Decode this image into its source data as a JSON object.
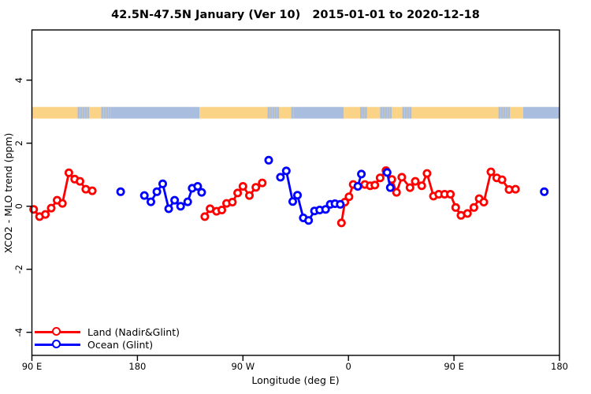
{
  "chart_data": {
    "type": "line",
    "title": "42.5N-47.5N January (Ver 10)   2015-01-01 to 2020-12-18",
    "xlabel": "Longitude (deg E)",
    "ylabel": "XCO2 - MLO trend (ppm)",
    "x_axis": {
      "range_deg": [
        90,
        540
      ],
      "ticks": [
        {
          "deg": 90,
          "label": "90 E"
        },
        {
          "deg": 180,
          "label": "180"
        },
        {
          "deg": 270,
          "label": "90 W"
        },
        {
          "deg": 360,
          "label": "0"
        },
        {
          "deg": 450,
          "label": "90 E"
        },
        {
          "deg": 540,
          "label": "180"
        }
      ]
    },
    "y_axis": {
      "range": [
        -4.73,
        5.59
      ],
      "ticks": [
        {
          "value": -4,
          "label": "-4"
        },
        {
          "value": -2,
          "label": "-2"
        },
        {
          "value": 0,
          "label": "0"
        },
        {
          "value": 2,
          "label": "2"
        },
        {
          "value": 4,
          "label": "4"
        }
      ]
    },
    "coastline_band": {
      "y_value_top": 3.15,
      "y_value_bottom": 2.78,
      "land_color": "#fbd387",
      "ocean_color": "#a9bede",
      "segments": [
        {
          "from": 90,
          "to": 129,
          "type": "land"
        },
        {
          "from": 129,
          "to": 157,
          "type": "mixed"
        },
        {
          "from": 157,
          "to": 233,
          "type": "ocean"
        },
        {
          "from": 233,
          "to": 291,
          "type": "land"
        },
        {
          "from": 291,
          "to": 313,
          "type": "mixed"
        },
        {
          "from": 313,
          "to": 356,
          "type": "ocean"
        },
        {
          "from": 356,
          "to": 370,
          "type": "land"
        },
        {
          "from": 370,
          "to": 377,
          "type": "mixed"
        },
        {
          "from": 377,
          "to": 387,
          "type": "land"
        },
        {
          "from": 387,
          "to": 401,
          "type": "mixed"
        },
        {
          "from": 401,
          "to": 406,
          "type": "land"
        },
        {
          "from": 406,
          "to": 414,
          "type": "mixed"
        },
        {
          "from": 414,
          "to": 488,
          "type": "land"
        },
        {
          "from": 488,
          "to": 509,
          "type": "mixed"
        },
        {
          "from": 509,
          "to": 540,
          "type": "ocean"
        }
      ]
    },
    "legend": {
      "position": "bottom-left",
      "items": [
        {
          "label": "Land (Nadir&Glint)",
          "color": "#ff0000"
        },
        {
          "label": "Ocean (Glint)",
          "color": "#0000ff"
        }
      ]
    },
    "series": [
      {
        "name": "Land (Nadir&Glint)",
        "color": "#ff0000",
        "marker": "open-circle",
        "segments": [
          [
            [
              91.5,
              -0.1
            ],
            [
              96.5,
              -0.33
            ],
            [
              101.5,
              -0.26
            ],
            [
              106.5,
              -0.06
            ],
            [
              111.5,
              0.19
            ],
            [
              116,
              0.09
            ],
            [
              121.5,
              1.06
            ],
            [
              126.5,
              0.86
            ],
            [
              131,
              0.79
            ],
            [
              136,
              0.54
            ],
            [
              141.5,
              0.49
            ]
          ],
          [
            [
              237.5,
              -0.33
            ],
            [
              242,
              -0.08
            ],
            [
              247.5,
              -0.16
            ],
            [
              252,
              -0.12
            ],
            [
              256,
              0.09
            ],
            [
              261,
              0.13
            ],
            [
              265.5,
              0.42
            ],
            [
              270,
              0.63
            ],
            [
              275.5,
              0.34
            ],
            [
              281,
              0.6
            ],
            [
              286.5,
              0.74
            ]
          ],
          [
            [
              354,
              -0.53
            ],
            [
              357,
              0.13
            ],
            [
              360.5,
              0.3
            ],
            [
              364,
              0.69
            ],
            [
              374,
              0.69
            ],
            [
              378.5,
              0.65
            ],
            [
              382.5,
              0.67
            ],
            [
              387,
              0.9
            ],
            [
              392,
              1.13
            ],
            [
              397,
              0.85
            ],
            [
              401,
              0.44
            ],
            [
              405.5,
              0.92
            ],
            [
              412.5,
              0.59
            ],
            [
              417,
              0.79
            ],
            [
              422.5,
              0.65
            ],
            [
              427,
              1.04
            ],
            [
              432.5,
              0.32
            ],
            [
              437,
              0.38
            ],
            [
              442,
              0.38
            ],
            [
              447,
              0.38
            ],
            [
              451.5,
              -0.04
            ],
            [
              456,
              -0.29
            ],
            [
              461.5,
              -0.23
            ],
            [
              467,
              -0.04
            ],
            [
              471.5,
              0.24
            ],
            [
              475.5,
              0.13
            ],
            [
              481.5,
              1.09
            ],
            [
              486.5,
              0.9
            ],
            [
              491,
              0.84
            ],
            [
              497,
              0.53
            ],
            [
              502.5,
              0.54
            ]
          ]
        ]
      },
      {
        "name": "Ocean (Glint)",
        "color": "#0000ff",
        "marker": "open-circle",
        "segments": [
          [
            [
              165.7,
              0.46
            ]
          ],
          [
            [
              185.9,
              0.34
            ],
            [
              191.5,
              0.14
            ],
            [
              196.6,
              0.46
            ],
            [
              201.6,
              0.71
            ],
            [
              206.7,
              -0.08
            ],
            [
              211.7,
              0.19
            ],
            [
              216.8,
              0.0
            ],
            [
              222.9,
              0.14
            ],
            [
              226.7,
              0.57
            ],
            [
              231.4,
              0.63
            ],
            [
              234.8,
              0.44
            ]
          ],
          [
            [
              292,
              1.46
            ]
          ],
          [
            [
              302,
              0.92
            ],
            [
              307,
              1.12
            ],
            [
              312.5,
              0.15
            ],
            [
              316.5,
              0.35
            ],
            [
              321.5,
              -0.37
            ],
            [
              326,
              -0.45
            ],
            [
              331,
              -0.15
            ],
            [
              335.5,
              -0.12
            ],
            [
              340.5,
              -0.1
            ],
            [
              344.5,
              0.06
            ],
            [
              348.5,
              0.08
            ],
            [
              353,
              0.06
            ]
          ],
          [
            [
              368,
              0.63
            ],
            [
              371,
              1.02
            ]
          ],
          [
            [
              393,
              1.07
            ],
            [
              395.7,
              0.59
            ]
          ],
          [
            [
              527,
              0.46
            ]
          ]
        ]
      }
    ]
  }
}
